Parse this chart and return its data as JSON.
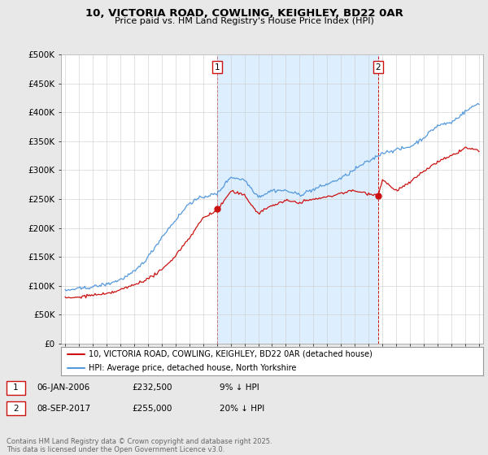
{
  "title": "10, VICTORIA ROAD, COWLING, KEIGHLEY, BD22 0AR",
  "subtitle": "Price paid vs. HM Land Registry's House Price Index (HPI)",
  "background_color": "#e8e8e8",
  "plot_bg_color": "#ffffff",
  "shade_color": "#ddeeff",
  "hpi_color": "#5599dd",
  "price_color": "#cc1111",
  "sale1_year": 2006.03,
  "sale1_price": 232500,
  "sale2_year": 2017.69,
  "sale2_price": 255000,
  "yticks": [
    0,
    50000,
    100000,
    150000,
    200000,
    250000,
    300000,
    350000,
    400000,
    450000,
    500000
  ],
  "ytick_labels": [
    "£0",
    "£50K",
    "£100K",
    "£150K",
    "£200K",
    "£250K",
    "£300K",
    "£350K",
    "£400K",
    "£450K",
    "£500K"
  ],
  "legend_line1": "10, VICTORIA ROAD, COWLING, KEIGHLEY, BD22 0AR (detached house)",
  "legend_line2": "HPI: Average price, detached house, North Yorkshire",
  "footer": "Contains HM Land Registry data © Crown copyright and database right 2025.\nThis data is licensed under the Open Government Licence v3.0.",
  "hpi_points_x": [
    1995,
    1996,
    1997,
    1998,
    1999,
    2000,
    2001,
    2002,
    2003,
    2004,
    2005,
    2006,
    2007,
    2008,
    2009,
    2010,
    2011,
    2012,
    2013,
    2014,
    2015,
    2016,
    2017,
    2018,
    2019,
    2020,
    2021,
    2022,
    2023,
    2024,
    2025
  ],
  "hpi_points_y": [
    90000,
    93000,
    98000,
    103000,
    112000,
    125000,
    150000,
    185000,
    215000,
    245000,
    255000,
    260000,
    290000,
    285000,
    255000,
    265000,
    265000,
    258000,
    265000,
    275000,
    285000,
    300000,
    315000,
    330000,
    335000,
    340000,
    355000,
    375000,
    380000,
    400000,
    415000
  ],
  "price_points_x": [
    1995,
    1996,
    1997,
    1998,
    1999,
    2000,
    2001,
    2002,
    2003,
    2004,
    2005,
    2006.03,
    2007,
    2008,
    2009,
    2010,
    2011,
    2012,
    2013,
    2014,
    2015,
    2016,
    2017.69,
    2018,
    2019,
    2020,
    2021,
    2022,
    2023,
    2024,
    2025
  ],
  "price_points_y": [
    82000,
    84000,
    88000,
    90000,
    96000,
    105000,
    115000,
    130000,
    155000,
    185000,
    220000,
    232500,
    265000,
    258000,
    225000,
    238000,
    245000,
    242000,
    248000,
    252000,
    258000,
    262000,
    255000,
    282000,
    262000,
    275000,
    295000,
    310000,
    320000,
    335000,
    330000
  ]
}
